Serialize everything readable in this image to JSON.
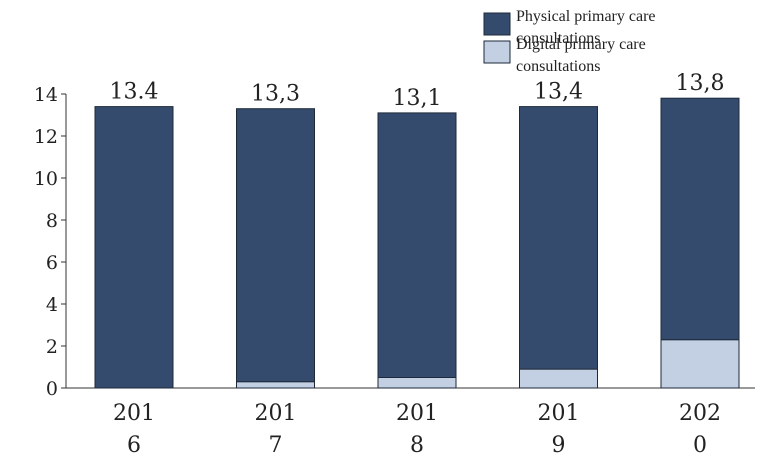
{
  "chart_data": {
    "type": "bar",
    "stacked": true,
    "categories": [
      "2016",
      "2017",
      "2018",
      "2019",
      "2020"
    ],
    "category_lines": [
      [
        "201",
        "6"
      ],
      [
        "201",
        "7"
      ],
      [
        "201",
        "8"
      ],
      [
        "201",
        "9"
      ],
      [
        "202",
        "0"
      ]
    ],
    "series": [
      {
        "name": "Digital primary care consultations",
        "color": "#c3cfe2",
        "values": [
          0,
          0.3,
          0.5,
          0.9,
          2.3
        ]
      },
      {
        "name": "Physical primary care consultations",
        "color": "#354b6e",
        "values": [
          13.4,
          13.0,
          12.6,
          12.5,
          11.5
        ]
      }
    ],
    "totals": [
      13.4,
      13.3,
      13.1,
      13.4,
      13.8
    ],
    "total_labels": [
      "13.4",
      "13,3",
      "13,1",
      "13,4",
      "13,8"
    ],
    "ylim": [
      0,
      14
    ],
    "yticks": [
      0,
      2,
      4,
      6,
      8,
      10,
      12,
      14
    ],
    "legend": {
      "position": "top-right",
      "entries": [
        {
          "lines": [
            "Physical primary care",
            "consultations"
          ],
          "color": "#354b6e"
        },
        {
          "lines": [
            "Digital primary care",
            "consultations"
          ],
          "color": "#c3cfe2"
        }
      ]
    },
    "grid": false,
    "title": "",
    "xlabel": "",
    "ylabel": ""
  }
}
